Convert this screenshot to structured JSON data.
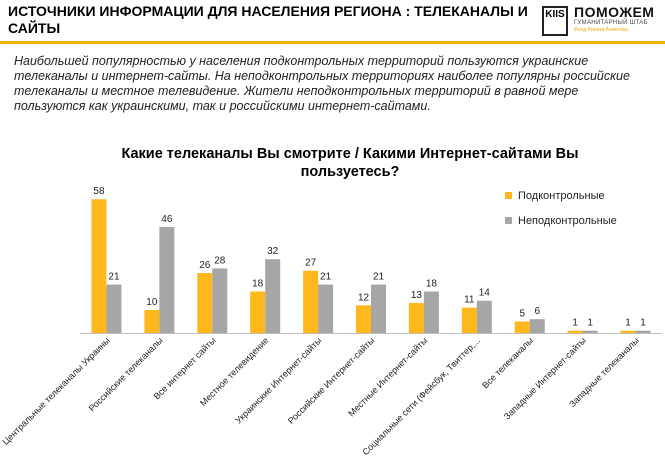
{
  "header": {
    "title": "ИСТОЧНИКИ ИНФОРМАЦИИ ДЛЯ НАСЕЛЕНИЯ РЕГИОНА : ТЕЛЕКАНАЛЫ И САЙТЫ",
    "logo_mark": "KIIS",
    "brand_name": "ПОМОЖЕМ",
    "brand_subtitle": "ГУМАНИТАРНЫЙ ШТАБ",
    "brand_footer": "Фонд Рината Ахметова",
    "accent_color": "#f2b300"
  },
  "intro_text": "Наибольшей популярностью у населения подконтрольных территорий пользуются украинские телеканалы и интернет-сайты. На неподконтрольных территориях наиболее популярны российские телеканалы и местное телевидение. Жители неподконтрольных территорий в равной мере пользуются как украинскими, так и российскими интернет-сайтами.",
  "chart_data": {
    "type": "bar",
    "title_line1": "Какие телеканалы Вы смотрите / Какими Интернет-сайтами Вы",
    "title_line2": "пользуетесь?",
    "categories": [
      "Центральные телеканалы Украины",
      "Российские телеканалы",
      "Все интернет сайты",
      "Местное телевидение",
      "Украинские Интернет-сайты",
      "Российские Интернет-сайты",
      "Местные Интернет-сайты",
      "Социальные сети (Фейсбук, Твиттер,...",
      "Все телеканалы",
      "Западные Интернет-сайты",
      "Западные телеканалы"
    ],
    "series": [
      {
        "name": "Подконтрольные",
        "color": "#ffb81c",
        "values": [
          58,
          10,
          26,
          18,
          27,
          12,
          13,
          11,
          5,
          1,
          1
        ]
      },
      {
        "name": "Неподконтрольные",
        "color": "#a6a6a6",
        "values": [
          21,
          46,
          28,
          32,
          21,
          21,
          18,
          14,
          6,
          1,
          1
        ]
      }
    ],
    "ylim": [
      0,
      62
    ],
    "legend_position": "top-right",
    "grid": false
  }
}
